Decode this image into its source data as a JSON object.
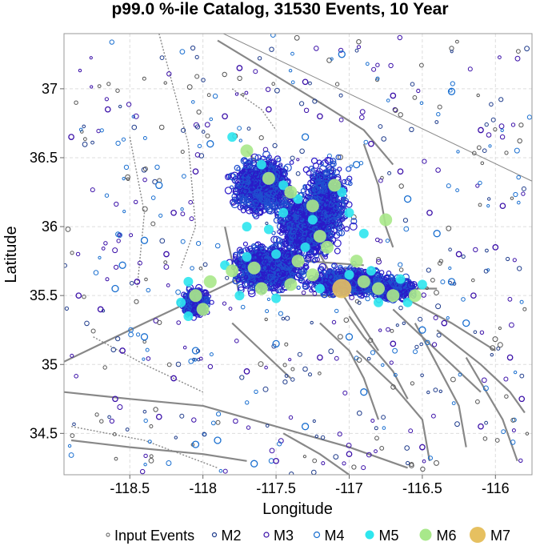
{
  "chart_data": {
    "type": "scatter",
    "title": "p99.0 %-ile Catalog, 31530 Events, 10 Year",
    "xlabel": "Longitude",
    "ylabel": "Latitude",
    "xlim": [
      -118.95,
      -115.75
    ],
    "ylim": [
      34.2,
      37.4
    ],
    "xticks": [
      -118.5,
      -118,
      -117.5,
      -117,
      -116.5,
      -116
    ],
    "yticks": [
      34.5,
      35,
      35.5,
      36,
      36.5,
      37
    ],
    "grid": true,
    "legend_position": "bottom",
    "legend": [
      {
        "label": "Input Events",
        "color": "#777777",
        "marker": "open-circle-small"
      },
      {
        "label": "M2",
        "color": "#1f3c8c",
        "marker": "open-circle"
      },
      {
        "label": "M3",
        "color": "#3a0fa8",
        "marker": "open-circle"
      },
      {
        "label": "M4",
        "color": "#1a6fd0",
        "marker": "open-circle"
      },
      {
        "label": "M5",
        "color": "#2ee6ee",
        "marker": "filled-circle"
      },
      {
        "label": "M6",
        "color": "#a8e88a",
        "marker": "filled-circle"
      },
      {
        "label": "M7",
        "color": "#e6c060",
        "marker": "filled-circle"
      }
    ],
    "series": [
      {
        "name": "M7",
        "color": "#e6c060",
        "points": [
          [
            -117.05,
            35.55
          ]
        ]
      },
      {
        "name": "M6",
        "color": "#a8e88a",
        "points": [
          [
            -117.7,
            36.55
          ],
          [
            -117.55,
            36.35
          ],
          [
            -117.4,
            36.25
          ],
          [
            -117.25,
            36.15
          ],
          [
            -117.1,
            36.3
          ],
          [
            -117.2,
            35.93
          ],
          [
            -117.15,
            35.85
          ],
          [
            -117.35,
            35.75
          ],
          [
            -117.65,
            35.7
          ],
          [
            -117.8,
            35.68
          ],
          [
            -117.95,
            35.6
          ],
          [
            -118.05,
            35.5
          ],
          [
            -118.0,
            35.4
          ],
          [
            -117.6,
            35.55
          ],
          [
            -117.4,
            35.58
          ],
          [
            -117.25,
            35.65
          ],
          [
            -116.9,
            35.6
          ],
          [
            -116.8,
            35.55
          ],
          [
            -116.7,
            35.5
          ],
          [
            -116.55,
            35.5
          ],
          [
            -116.95,
            35.75
          ],
          [
            -116.75,
            36.05
          ]
        ]
      },
      {
        "name": "M5",
        "color": "#2ee6ee",
        "points": [
          [
            -117.8,
            36.65
          ],
          [
            -117.6,
            36.45
          ],
          [
            -117.45,
            36.3
          ],
          [
            -117.35,
            36.2
          ],
          [
            -117.25,
            36.05
          ],
          [
            -117.05,
            36.25
          ],
          [
            -117.0,
            36.1
          ],
          [
            -116.9,
            35.95
          ],
          [
            -117.3,
            35.85
          ],
          [
            -117.5,
            35.8
          ],
          [
            -117.7,
            35.78
          ],
          [
            -117.85,
            35.72
          ],
          [
            -118.1,
            35.6
          ],
          [
            -118.15,
            35.45
          ],
          [
            -118.1,
            35.35
          ],
          [
            -117.75,
            35.5
          ],
          [
            -117.5,
            35.48
          ],
          [
            -117.2,
            35.55
          ],
          [
            -117.0,
            35.65
          ],
          [
            -116.85,
            35.68
          ],
          [
            -116.65,
            35.62
          ],
          [
            -116.5,
            35.58
          ],
          [
            -116.6,
            35.45
          ],
          [
            -116.8,
            35.45
          ],
          [
            -117.55,
            35.98
          ],
          [
            -117.7,
            36.0
          ],
          [
            -117.45,
            36.1
          ]
        ]
      },
      {
        "name": "M4",
        "color": "#1a6fd0",
        "points": [
          [
            -118.6,
            35.55
          ],
          [
            -118.4,
            35.9
          ],
          [
            -118.3,
            36.3
          ],
          [
            -117.95,
            36.6
          ],
          [
            -117.3,
            36.65
          ],
          [
            -116.95,
            36.45
          ],
          [
            -116.6,
            36.2
          ],
          [
            -116.4,
            35.95
          ],
          [
            -116.3,
            35.6
          ],
          [
            -116.5,
            35.25
          ],
          [
            -117.0,
            35.2
          ],
          [
            -117.5,
            35.15
          ],
          [
            -118.05,
            35.1
          ],
          [
            -118.4,
            35.2
          ],
          [
            -117.3,
            34.55
          ],
          [
            -116.9,
            34.8
          ],
          [
            -118.05,
            34.42
          ],
          [
            -117.9,
            34.45
          ],
          [
            -117.65,
            34.28
          ],
          [
            -116.3,
            36.98
          ],
          [
            -117.05,
            37.25
          ],
          [
            -116.2,
            35.3
          ],
          [
            -118.55,
            35.72
          ]
        ]
      },
      {
        "name": "M3",
        "color": "#3a0fa8",
        "points": [
          [
            -118.7,
            35.4
          ],
          [
            -118.45,
            35.6
          ],
          [
            -118.25,
            35.8
          ],
          [
            -118.2,
            36.1
          ],
          [
            -118.05,
            36.4
          ],
          [
            -117.85,
            36.8
          ],
          [
            -117.55,
            36.85
          ],
          [
            -117.2,
            36.8
          ],
          [
            -116.85,
            36.6
          ],
          [
            -116.65,
            36.4
          ],
          [
            -116.45,
            36.1
          ],
          [
            -116.25,
            35.8
          ],
          [
            -116.15,
            35.5
          ],
          [
            -116.35,
            35.3
          ],
          [
            -116.7,
            35.15
          ],
          [
            -117.2,
            35.05
          ],
          [
            -117.7,
            34.95
          ],
          [
            -118.2,
            34.9
          ],
          [
            -118.55,
            35.1
          ],
          [
            -118.85,
            35.5
          ],
          [
            -118.9,
            36.65
          ],
          [
            -118.65,
            36.85
          ],
          [
            -115.9,
            35.05
          ],
          [
            -115.82,
            34.75
          ],
          [
            -116.1,
            34.55
          ],
          [
            -116.5,
            34.4
          ],
          [
            -117.0,
            34.35
          ],
          [
            -117.5,
            34.3
          ],
          [
            -118.3,
            34.62
          ],
          [
            -118.6,
            34.75
          ],
          [
            -117.75,
            37.15
          ],
          [
            -117.3,
            37.05
          ],
          [
            -116.7,
            36.95
          ],
          [
            -116.1,
            36.7
          ],
          [
            -115.95,
            36.15
          ],
          [
            -116.0,
            35.85
          ]
        ]
      }
    ]
  }
}
